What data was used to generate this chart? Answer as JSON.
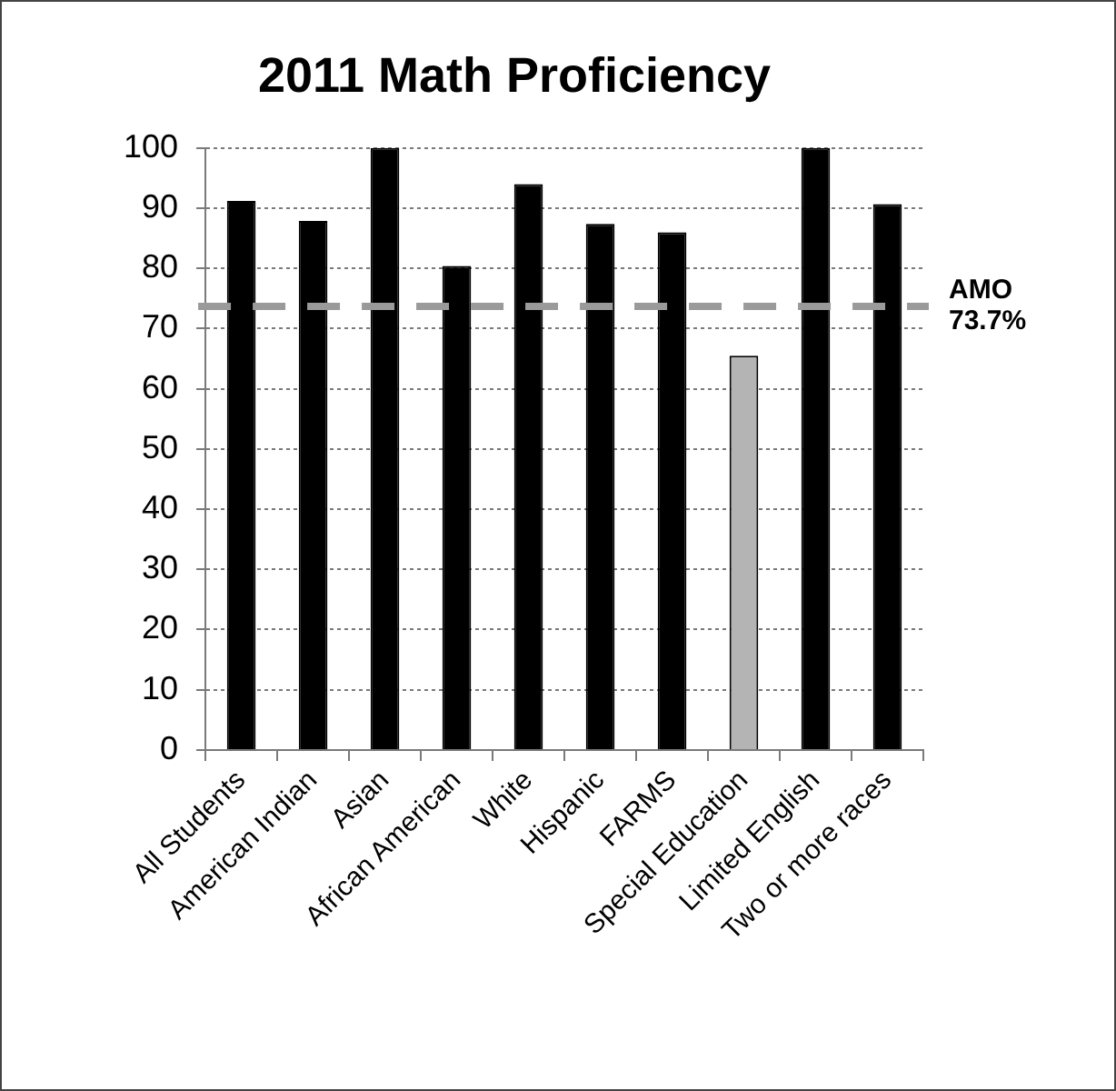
{
  "chart_data": {
    "type": "bar",
    "title": "2011 Math Proficiency",
    "categories": [
      "All Students",
      "American Indian",
      "Asian",
      "African American",
      "White",
      "Hispanic",
      "FARMS",
      "Special Education",
      "Limited English",
      "Two or more races"
    ],
    "values": [
      91.2,
      87.9,
      100,
      80.4,
      94.0,
      87.4,
      86.0,
      65.5,
      100,
      90.7
    ],
    "colors": [
      "#000000",
      "#000000",
      "#000000",
      "#000000",
      "#000000",
      "#000000",
      "#000000",
      "#b4b4b4",
      "#000000",
      "#000000"
    ],
    "ylim": [
      0,
      100
    ],
    "yticks": [
      0,
      10,
      20,
      30,
      40,
      50,
      60,
      70,
      80,
      90,
      100
    ],
    "grid": "y",
    "ref_lines": [
      {
        "axis": "y",
        "value": 73.7,
        "label": "AMO 73.7%",
        "color": "#9a9a9a",
        "line_style": "dashed"
      }
    ]
  }
}
